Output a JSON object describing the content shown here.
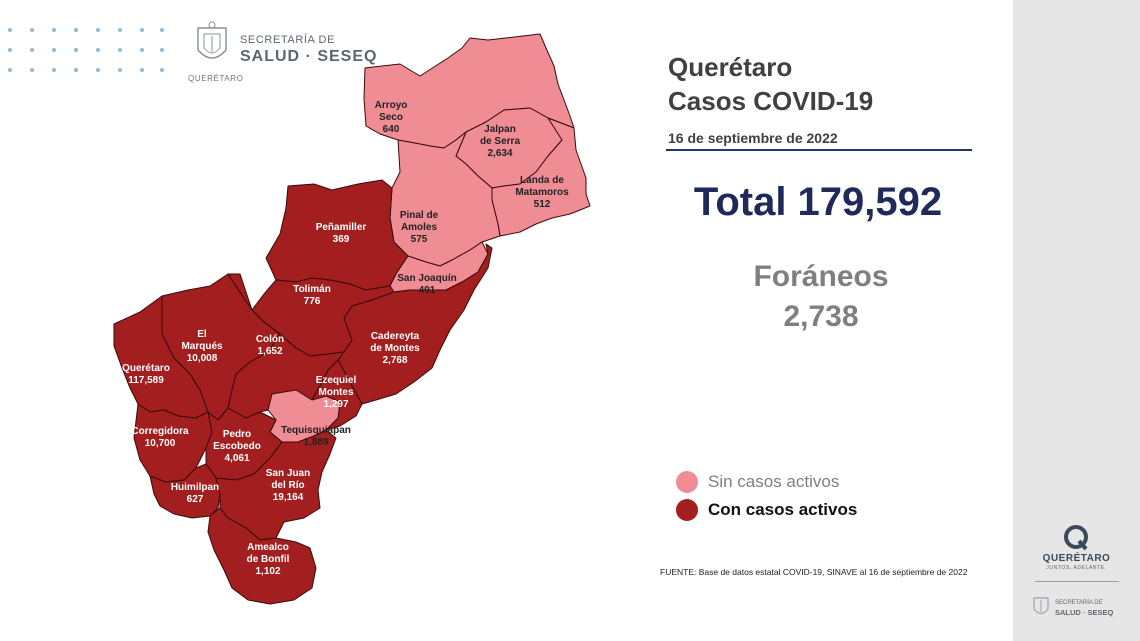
{
  "header": {
    "logo_line1": "SECRETARÍA DE",
    "logo_line2": "SALUD · SESEQ",
    "logo_state": "QUERÉTARO"
  },
  "title": {
    "line1": "Querétaro",
    "line2": "Casos COVID-19",
    "date": "16 de septiembre de 2022"
  },
  "total": {
    "label": "Total 179,592"
  },
  "foraneos": {
    "label": "Foráneos",
    "value": "2,738"
  },
  "legend": {
    "sin_label": "Sin casos activos",
    "con_label": "Con casos activos",
    "sin_color": "#f08c94",
    "con_color": "#a31e1e"
  },
  "source": "FUENTE: Base de datos estatal  COVID-19,  SINAVE  al 16 de septiembre de 2022",
  "municipalities": [
    {
      "name": "Arroyo Seco",
      "lines": [
        "Arroyo",
        "Seco"
      ],
      "cases": "640",
      "status": "sin"
    },
    {
      "name": "Jalpan de Serra",
      "lines": [
        "Jalpan",
        "de Serra"
      ],
      "cases": "2,634",
      "status": "sin"
    },
    {
      "name": "Landa de Matamoros",
      "lines": [
        "Landa de",
        "Matamoros"
      ],
      "cases": "512",
      "status": "sin"
    },
    {
      "name": "Pinal de Amoles",
      "lines": [
        "Pinal de",
        "Amoles"
      ],
      "cases": "575",
      "status": "sin"
    },
    {
      "name": "Peñamiller",
      "lines": [
        "Peñamiller"
      ],
      "cases": "369",
      "status": "con"
    },
    {
      "name": "San Joaquín",
      "lines": [
        "San Joaquín"
      ],
      "cases": "491",
      "status": "sin"
    },
    {
      "name": "Tolimán",
      "lines": [
        "Tolimán"
      ],
      "cases": "776",
      "status": "con"
    },
    {
      "name": "El Marqués",
      "lines": [
        "El",
        "Marqués"
      ],
      "cases": "10,008",
      "status": "con"
    },
    {
      "name": "Colón",
      "lines": [
        "Colón"
      ],
      "cases": "1,652",
      "status": "con"
    },
    {
      "name": "Cadereyta de Montes",
      "lines": [
        "Cadereyta",
        "de Montes"
      ],
      "cases": "2,768",
      "status": "con"
    },
    {
      "name": "Querétaro",
      "lines": [
        "Querétaro"
      ],
      "cases": "117,589",
      "status": "con"
    },
    {
      "name": "Ezequiel Montes",
      "lines": [
        "Ezequiel",
        "Montes"
      ],
      "cases": "1,297",
      "status": "con"
    },
    {
      "name": "Corregidora",
      "lines": [
        "Corregidora"
      ],
      "cases": "10,700",
      "status": "con"
    },
    {
      "name": "Tequisquiapan",
      "lines": [
        "Tequisquiapan"
      ],
      "cases": "1,889",
      "status": "sin"
    },
    {
      "name": "Pedro Escobedo",
      "lines": [
        "Pedro",
        "Escobedo"
      ],
      "cases": "4,061",
      "status": "con"
    },
    {
      "name": "Huimilpan",
      "lines": [
        "Huimilpan"
      ],
      "cases": "627",
      "status": "con"
    },
    {
      "name": "San Juan del Río",
      "lines": [
        "San Juan",
        "del Río"
      ],
      "cases": "19,164",
      "status": "con"
    },
    {
      "name": "Amealco de Bonfil",
      "lines": [
        "Amealco",
        "de Bonfil"
      ],
      "cases": "1,102",
      "status": "con"
    }
  ],
  "side": {
    "brand_name": "QUERÉTARO",
    "brand_tagline": "JUNTOS, ADELANTE.",
    "logo_line1": "SECRETARÍA DE",
    "logo_line2": "SALUD · SESEQ"
  }
}
